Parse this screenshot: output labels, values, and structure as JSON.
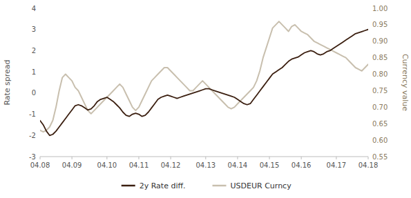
{
  "chart_data": {
    "type": "line",
    "categories": [
      "04.08",
      null,
      null,
      null,
      null,
      null,
      null,
      null,
      null,
      null,
      "04.09",
      null,
      null,
      null,
      null,
      null,
      null,
      null,
      null,
      null,
      null,
      "04.10",
      null,
      null,
      null,
      null,
      null,
      null,
      null,
      null,
      null,
      "04.11",
      null,
      null,
      null,
      null,
      null,
      null,
      null,
      null,
      null,
      "04.12",
      null,
      null,
      null,
      null,
      null,
      null,
      null,
      null,
      null,
      null,
      "04.13",
      null,
      null,
      null,
      null,
      null,
      null,
      null,
      null,
      null,
      "04.14",
      null,
      null,
      null,
      null,
      null,
      null,
      null,
      null,
      null,
      "04.15",
      null,
      null,
      null,
      null,
      null,
      null,
      null,
      null,
      null,
      "04.16",
      null,
      null,
      null,
      null,
      null,
      null,
      null,
      null,
      null,
      null,
      "04.17",
      null,
      null,
      null,
      null,
      null,
      null,
      null,
      null,
      null,
      "04.18"
    ],
    "ylabel": "Rate spread",
    "y2label": "Currency value",
    "ylim": [
      -3,
      4
    ],
    "yticks": [
      -3,
      -2,
      -1,
      0,
      1,
      2,
      3,
      4
    ],
    "y2lim": [
      0.55,
      1.0
    ],
    "y2ticks": [
      0.55,
      {
        "value": 0.6,
        "label": "0.60"
      },
      0.65,
      {
        "value": 0.7,
        "label": "0.70"
      },
      0.75,
      {
        "value": 0.8,
        "label": "0.80"
      },
      0.85,
      {
        "value": 0.9,
        "label": "0.90"
      },
      0.95,
      {
        "value": 1.0,
        "label": "1.00"
      }
    ],
    "grid": false,
    "legend": "bottom",
    "series": [
      {
        "name": "2y Rate diff.",
        "color": "#3b1f10",
        "axis": "y",
        "values": [
          -1.3,
          -1.5,
          -1.8,
          -2.0,
          -1.95,
          -1.8,
          -1.6,
          -1.4,
          -1.2,
          -1.0,
          -0.8,
          -0.6,
          -0.55,
          -0.6,
          -0.7,
          -0.8,
          -0.75,
          -0.6,
          -0.4,
          -0.3,
          -0.25,
          -0.2,
          -0.3,
          -0.4,
          -0.55,
          -0.7,
          -0.9,
          -1.05,
          -1.1,
          -1.0,
          -0.95,
          -1.0,
          -1.1,
          -1.05,
          -0.9,
          -0.7,
          -0.5,
          -0.3,
          -0.2,
          -0.15,
          -0.1,
          -0.15,
          -0.2,
          -0.25,
          -0.2,
          -0.15,
          -0.1,
          -0.05,
          0.0,
          0.05,
          0.1,
          0.15,
          0.2,
          0.2,
          0.15,
          0.1,
          0.05,
          0.0,
          -0.05,
          -0.1,
          -0.15,
          -0.2,
          -0.3,
          -0.4,
          -0.5,
          -0.55,
          -0.5,
          -0.3,
          -0.1,
          0.1,
          0.3,
          0.5,
          0.7,
          0.9,
          1.0,
          1.1,
          1.2,
          1.35,
          1.5,
          1.6,
          1.65,
          1.7,
          1.8,
          1.9,
          1.95,
          2.0,
          1.95,
          1.85,
          1.8,
          1.85,
          1.95,
          2.0,
          2.1,
          2.2,
          2.3,
          2.4,
          2.5,
          2.6,
          2.7,
          2.8,
          2.85,
          2.9,
          2.95,
          3.0
        ]
      },
      {
        "name": "USDEUR Curncy",
        "color": "#c8bfae",
        "axis": "y2",
        "values": [
          0.63,
          0.625,
          0.63,
          0.64,
          0.66,
          0.7,
          0.75,
          0.79,
          0.8,
          0.79,
          0.78,
          0.76,
          0.75,
          0.73,
          0.71,
          0.69,
          0.68,
          0.69,
          0.7,
          0.71,
          0.72,
          0.73,
          0.74,
          0.75,
          0.76,
          0.77,
          0.76,
          0.74,
          0.72,
          0.7,
          0.69,
          0.7,
          0.72,
          0.74,
          0.76,
          0.78,
          0.79,
          0.8,
          0.81,
          0.82,
          0.82,
          0.81,
          0.8,
          0.79,
          0.78,
          0.77,
          0.76,
          0.75,
          0.75,
          0.76,
          0.77,
          0.78,
          0.77,
          0.76,
          0.75,
          0.74,
          0.73,
          0.72,
          0.71,
          0.7,
          0.695,
          0.7,
          0.71,
          0.72,
          0.73,
          0.74,
          0.75,
          0.76,
          0.78,
          0.81,
          0.85,
          0.88,
          0.91,
          0.94,
          0.95,
          0.96,
          0.95,
          0.94,
          0.93,
          0.945,
          0.95,
          0.94,
          0.93,
          0.925,
          0.92,
          0.91,
          0.9,
          0.895,
          0.89,
          0.885,
          0.88,
          0.875,
          0.87,
          0.865,
          0.86,
          0.855,
          0.85,
          0.84,
          0.83,
          0.82,
          0.815,
          0.81,
          0.82,
          0.83
        ]
      }
    ]
  }
}
